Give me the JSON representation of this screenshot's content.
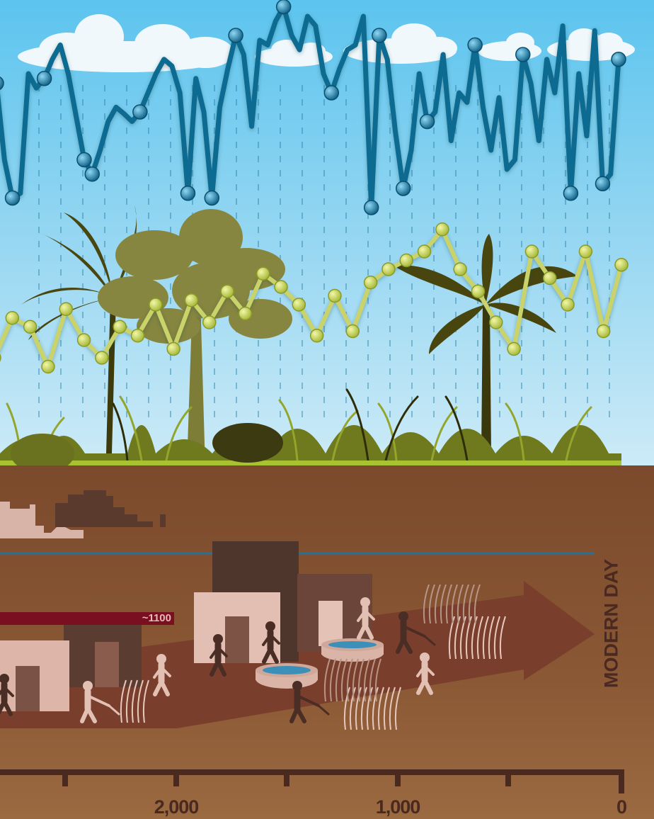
{
  "chart_data": [
    {
      "type": "line",
      "series": [
        {
          "color": "#0f6a91",
          "values": [
            150,
            70,
            30,
            35,
            160,
            145,
            155,
            175,
            190,
            160,
            115,
            70,
            55,
            80,
            110,
            125,
            118,
            110,
            120,
            140,
            160,
            175,
            168,
            140,
            35,
            155,
            120,
            30,
            125,
            165,
            200,
            180,
            105,
            195,
            190,
            215,
            230,
            200,
            185,
            220,
            210,
            160,
            140,
            165,
            185,
            190,
            220,
            20,
            200,
            175,
            100,
            40,
            80,
            160,
            110,
            120,
            180,
            90,
            140,
            130,
            190,
            125,
            80,
            135,
            60,
            70,
            180,
            150,
            90,
            175,
            140,
            210,
            35,
            160,
            95,
            205,
            45,
            55,
            175
          ]
        },
        {
          "color": "#c9d36a",
          "values": [
            20,
            65,
            55,
            10,
            75,
            40,
            20,
            55,
            45,
            80,
            30,
            85,
            60,
            95,
            70,
            115,
            100,
            80,
            45,
            90,
            50,
            105,
            120,
            130,
            140,
            165,
            120,
            95,
            60,
            30,
            140,
            110,
            80,
            140,
            50,
            125
          ]
        }
      ]
    },
    {
      "type": "timeline",
      "x_ticks": [
        "2,000",
        "1,000",
        "0"
      ],
      "annotations": [
        "~1100",
        "MODERN DAY"
      ]
    }
  ]
}
